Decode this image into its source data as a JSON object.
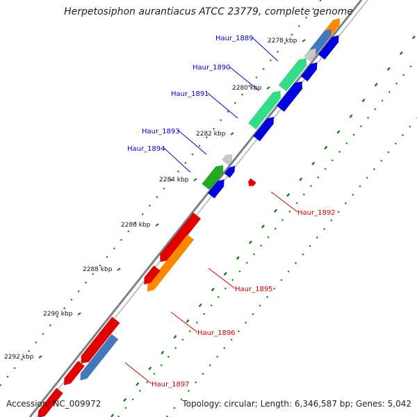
{
  "title": "Herpetosiphon aurantiacus ATCC 23779, complete genome",
  "footer": {
    "accession": "Accession: NC_009972",
    "stats": "Topology: circular; Length: 6,346,587 bp; Genes: 5,042"
  },
  "ticks": [
    {
      "label": "2278 kbp"
    },
    {
      "label": "2280 kbp"
    },
    {
      "label": "2282 kbp"
    },
    {
      "label": "2284 kbp"
    },
    {
      "label": "2286 kbp"
    },
    {
      "label": "2288 kbp"
    },
    {
      "label": "2290 kbp"
    },
    {
      "label": "2292 kbp"
    }
  ],
  "genes": [
    {
      "name": "Haur_1889",
      "label_color": "#0000cc"
    },
    {
      "name": "Haur_1890",
      "label_color": "#0000cc"
    },
    {
      "name": "Haur_1891",
      "label_color": "#0000cc"
    },
    {
      "name": "Haur_1893",
      "label_color": "#0000cc"
    },
    {
      "name": "Haur_1894",
      "label_color": "#0000cc"
    },
    {
      "name": "Haur_1892",
      "label_color": "#cc0000"
    },
    {
      "name": "Haur_1895",
      "label_color": "#cc0000"
    },
    {
      "name": "Haur_1896",
      "label_color": "#cc0000"
    },
    {
      "name": "Haur_1897",
      "label_color": "#cc0000"
    }
  ],
  "colors": {
    "backbone": "#808080",
    "cds": "#0000dd",
    "rna": "#e00000",
    "feature_green": "#33dd88",
    "feature_orange": "#ff8800",
    "feature_steelblue": "#4477bb",
    "feature_lightgray": "#c8c8c8",
    "feature_darkgreen": "#22aa22",
    "dots": "#007700"
  }
}
